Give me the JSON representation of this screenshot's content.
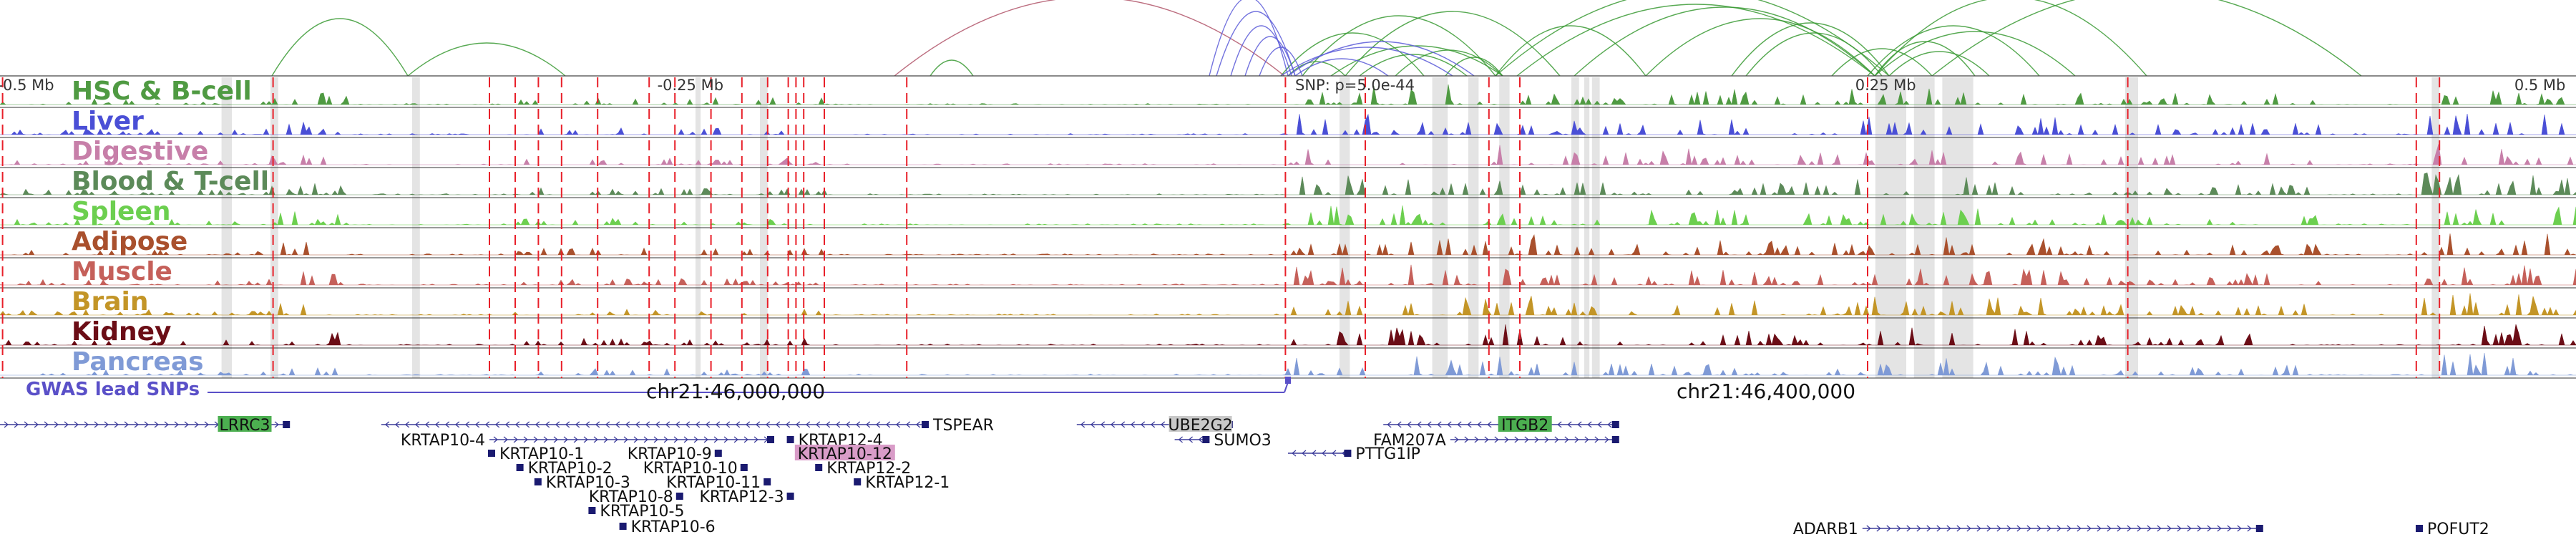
{
  "axis": {
    "labels": [
      {
        "pos": 0.01,
        "text": "-0.5 Mb"
      },
      {
        "pos": 0.268,
        "text": "-0.25 Mb"
      },
      {
        "pos": 0.732,
        "text": "0.25 Mb"
      },
      {
        "pos": 0.986,
        "text": "0.5 Mb"
      }
    ],
    "snp": {
      "pos": 0.5,
      "text": "SNP: p=5.0e-44"
    }
  },
  "tracks": [
    {
      "name": "HSC & B-cell",
      "color": "#4f9a42",
      "bg": "#88c07d"
    },
    {
      "name": "Liver",
      "color": "#4a4fd6",
      "bg": "#8e92e8"
    },
    {
      "name": "Digestive",
      "color": "#c77fa9",
      "bg": "#ddb0cb"
    },
    {
      "name": "Blood & T-cell",
      "color": "#5c8a59",
      "bg": "#98b896"
    },
    {
      "name": "Spleen",
      "color": "#6ccf4f",
      "bg": "#a5e48f"
    },
    {
      "name": "Adipose",
      "color": "#a9502d",
      "bg": "#cf8f75"
    },
    {
      "name": "Muscle",
      "color": "#c5605a",
      "bg": "#dc9a95"
    },
    {
      "name": "Brain",
      "color": "#c39527",
      "bg": "#dcc07a"
    },
    {
      "name": "Kidney",
      "color": "#6b0d16",
      "bg": "#a9646a"
    },
    {
      "name": "Pancreas",
      "color": "#7f9ad6",
      "bg": "#b4c4e8"
    }
  ],
  "gwas": {
    "label": "GWAS lead SNPs",
    "color": "#5a50c8"
  },
  "coords": [
    {
      "pos": 0.23,
      "text": "chr21:46,000,000"
    },
    {
      "pos": 0.63,
      "text": "chr21:46,400,000"
    }
  ],
  "genes": [
    {
      "name": "LRRC3",
      "start": 0.0,
      "end": 0.112,
      "row": 0,
      "dir": "+",
      "label_pos": 0.095,
      "label_side": "box",
      "box_color": "#4caf50"
    },
    {
      "name": "TSPEAR",
      "start": 0.148,
      "end": 0.36,
      "row": 0,
      "dir": "-",
      "label_side": "right"
    },
    {
      "name": "UBE2G2",
      "start": 0.418,
      "end": 0.478,
      "row": 0,
      "dir": "-",
      "label_pos": 0.466,
      "label_side": "box",
      "box_color": "#c8c8c8"
    },
    {
      "name": "ITGB2",
      "start": 0.537,
      "end": 0.628,
      "row": 0,
      "dir": "-",
      "label_pos": 0.592,
      "label_side": "box",
      "box_color": "#4caf50"
    },
    {
      "name": "KRTAP10-4",
      "start": 0.19,
      "end": 0.3,
      "row": 1,
      "dir": "+",
      "label_side": "left"
    },
    {
      "name": "KRTAP12-4",
      "start": 0.306,
      "end": 0.306,
      "row": 1,
      "dir": "-",
      "label_side": "right"
    },
    {
      "name": "SUMO3",
      "start": 0.456,
      "end": 0.469,
      "row": 1,
      "dir": "-",
      "label_side": "right"
    },
    {
      "name": "FAM207A",
      "start": 0.563,
      "end": 0.628,
      "row": 1,
      "dir": "+",
      "label_side": "left"
    },
    {
      "name": "KRTAP10-1",
      "start": 0.19,
      "end": 0.19,
      "row": 2,
      "dir": "+",
      "label_side": "right"
    },
    {
      "name": "KRTAP10-9",
      "start": 0.278,
      "end": 0.278,
      "row": 2,
      "dir": "+",
      "label_side": "left"
    },
    {
      "name": "KRTAP10-12",
      "start": 0.31,
      "end": 0.346,
      "row": 2,
      "dir": "+",
      "label_pos": 0.328,
      "label_side": "box",
      "box_color": "#d99cc8"
    },
    {
      "name": "PTTG1IP",
      "start": 0.5,
      "end": 0.524,
      "row": 2,
      "dir": "-",
      "label_side": "right"
    },
    {
      "name": "KRTAP10-2",
      "start": 0.201,
      "end": 0.201,
      "row": 3,
      "dir": "+",
      "label_side": "right"
    },
    {
      "name": "KRTAP10-10",
      "start": 0.288,
      "end": 0.288,
      "row": 3,
      "dir": "+",
      "label_side": "left"
    },
    {
      "name": "KRTAP12-2",
      "start": 0.317,
      "end": 0.317,
      "row": 3,
      "dir": "-",
      "label_side": "right"
    },
    {
      "name": "KRTAP10-3",
      "start": 0.208,
      "end": 0.208,
      "row": 4,
      "dir": "+",
      "label_side": "right"
    },
    {
      "name": "KRTAP10-11",
      "start": 0.297,
      "end": 0.297,
      "row": 4,
      "dir": "+",
      "label_side": "left"
    },
    {
      "name": "KRTAP12-1",
      "start": 0.332,
      "end": 0.332,
      "row": 4,
      "dir": "-",
      "label_side": "right"
    },
    {
      "name": "KRTAP10-8",
      "start": 0.263,
      "end": 0.263,
      "row": 5,
      "dir": "+",
      "label_side": "left"
    },
    {
      "name": "KRTAP12-3",
      "start": 0.306,
      "end": 0.306,
      "row": 5,
      "dir": "-",
      "label_side": "left"
    },
    {
      "name": "KRTAP10-5",
      "start": 0.229,
      "end": 0.229,
      "row": 6,
      "dir": "+",
      "label_side": "right"
    },
    {
      "name": "KRTAP10-6",
      "start": 0.241,
      "end": 0.241,
      "row": 7,
      "dir": "+",
      "label_side": "right"
    },
    {
      "name": "ADARB1",
      "start": 0.723,
      "end": 0.878,
      "row": 8,
      "dir": "+",
      "label_side": "left"
    },
    {
      "name": "POFUT2",
      "start": 0.938,
      "end": 0.94,
      "row": 8,
      "dir": "-",
      "label_side": "right"
    }
  ],
  "colors": {
    "highlight": "#dddddd",
    "marker": "#e8202a",
    "arc_green": "#3a9a34",
    "arc_pink": "#b05468",
    "arc_blue": "#5b5bd8"
  }
}
